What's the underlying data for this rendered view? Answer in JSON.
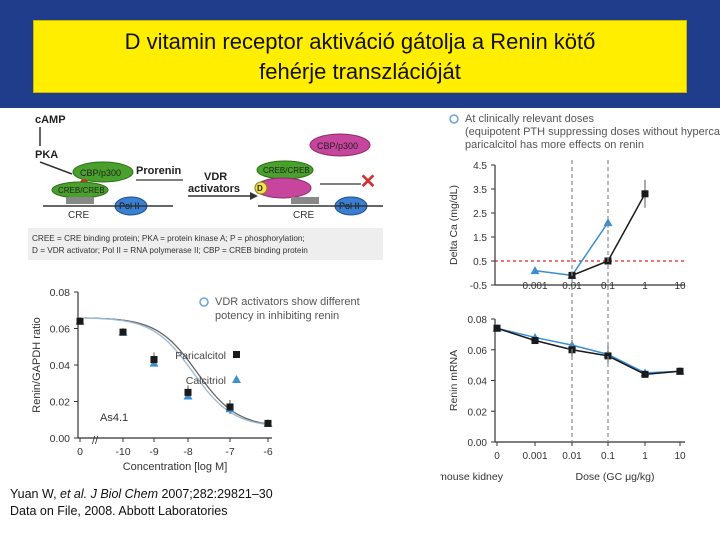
{
  "title": {
    "line1": "D vitamin receptor aktiváció gátolja a Renin kötő",
    "line2": "fehérje transzlációját"
  },
  "colors": {
    "banner": "#1f3d8a",
    "title_bg": "#ffee00",
    "paricalcitol": "#1a1a1a",
    "calcitriol": "#3b8fd1",
    "dash_red": "#e0201b"
  },
  "diagram": {
    "camp": "cAMP",
    "pka": "PKA",
    "p_label": "P",
    "cbp_left": "CBP/p300",
    "creb_left": "CREB/CREB",
    "prorenin": "Prorenin",
    "cre_left": "CRE",
    "pol_left": "Pol II",
    "vdr_line1": "VDR",
    "vdr_line2": "activators",
    "cbp_right": "CBP/p300",
    "creb_right": "CREB/CREB",
    "d_label": "D",
    "cre_right": "CRE",
    "pol_right": "Pol II",
    "caption1": "CREE = CRE binding protein; PKA = protein kinase A; P = phosphorylation;",
    "caption2": "D = VDR activator; Pol II = RNA polymerase II; CBP = CREB binding protein"
  },
  "bullets": {
    "left": "VDR activators show different potency in inhibiting renin",
    "right": "At clinically relevant doses (equipotent PTH suppressing doses without hypercalcemia), paricalcitol has more effects on renin"
  },
  "citation": {
    "line1_pre": "Yuan W, ",
    "line1_italic": "et al. J Biol Chem",
    "line1_post": " 2007;282:29821–30",
    "line2": "Data on File, 2008. Abbott Laboratories"
  },
  "chart_data": [
    {
      "type": "line",
      "ylabel": "Renin/GAPDH ratio",
      "xlabel": "Concentration [log M]",
      "x_ticks": [
        "0",
        "-10",
        "-9",
        "-8",
        "-7",
        "-6"
      ],
      "x": [
        0,
        -10,
        -9,
        -8,
        -7,
        -6
      ],
      "y_ticks": [
        "0.00",
        "0.02",
        "0.04",
        "0.06",
        "0.08"
      ],
      "ylim": [
        0,
        0.08
      ],
      "annotation": "As4.1",
      "legend": [
        "Paricalcitol",
        "Calcitriol"
      ],
      "legend_position": "center-right",
      "series": [
        {
          "name": "Paricalcitol",
          "values": [
            0.064,
            0.058,
            0.043,
            0.025,
            0.017,
            0.008
          ]
        },
        {
          "name": "Calcitriol",
          "values": [
            0.064,
            0.058,
            0.041,
            0.023,
            0.016,
            0.008
          ]
        }
      ]
    },
    {
      "type": "line",
      "ylabel": "Delta Ca (mg/dL)",
      "x_ticks": [
        "0.001",
        "0.01",
        "0.1",
        "1",
        "10"
      ],
      "x": [
        0.001,
        0.01,
        0.1,
        1
      ],
      "y_ticks": [
        "-0.5",
        "0.5",
        "1.5",
        "2.5",
        "3.5",
        "4.5"
      ],
      "ylim": [
        -0.5,
        4.5
      ],
      "xscale": "log",
      "reference_line": 0.5,
      "series": [
        {
          "name": "Paricalcitol",
          "values": [
            null,
            -0.1,
            0.5,
            3.3
          ]
        },
        {
          "name": "Calcitriol",
          "values": [
            0.1,
            -0.1,
            2.1,
            null
          ]
        }
      ]
    },
    {
      "type": "line",
      "ylabel": "Renin mRNA",
      "xlabel": "Dose (GC μg/kg)",
      "note": "In vivo, mouse kidney",
      "x_ticks": [
        "0",
        "0.001",
        "0.01",
        "0.1",
        "1",
        "10"
      ],
      "x": [
        0,
        0.001,
        0.01,
        0.1,
        1,
        10
      ],
      "y_ticks": [
        "0.00",
        "0.02",
        "0.04",
        "0.06",
        "0.08"
      ],
      "ylim": [
        0,
        0.08
      ],
      "series": [
        {
          "name": "Paricalcitol",
          "values": [
            0.074,
            0.066,
            0.06,
            0.056,
            0.044,
            0.046
          ]
        },
        {
          "name": "Calcitriol",
          "values": [
            0.074,
            0.068,
            0.063,
            0.057,
            0.045,
            0.046
          ]
        }
      ]
    }
  ]
}
